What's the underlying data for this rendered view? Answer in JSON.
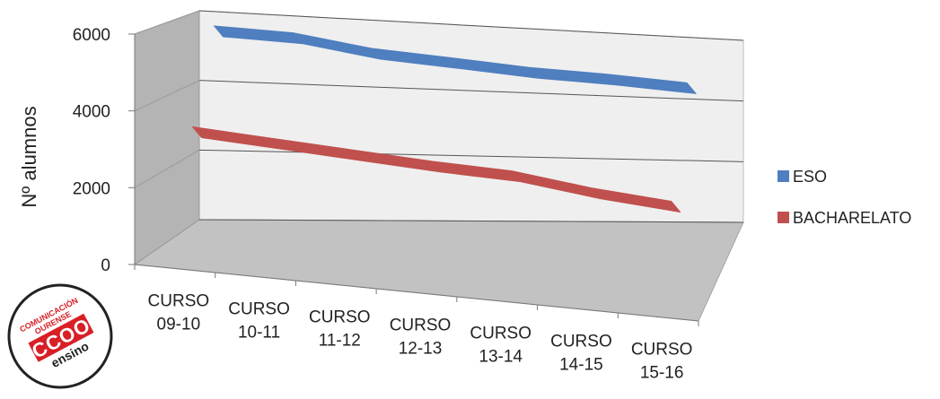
{
  "chart_data": {
    "type": "line",
    "title": "",
    "xlabel": "",
    "ylabel": "Nº alumnos",
    "ylim": [
      0,
      6000
    ],
    "yticks": [
      0,
      2000,
      4000,
      6000
    ],
    "grid": true,
    "legend_position": "right",
    "categories": [
      [
        "CURSO",
        "09-10"
      ],
      [
        "CURSO",
        "10-11"
      ],
      [
        "CURSO",
        "11-12"
      ],
      [
        "CURSO",
        "12-13"
      ],
      [
        "CURSO",
        "13-14"
      ],
      [
        "CURSO",
        "14-15"
      ],
      [
        "CURSO",
        "15-16"
      ]
    ],
    "series": [
      {
        "name": "ESO",
        "color": "#4f7fbf",
        "values": [
          5900,
          5800,
          5450,
          5280,
          5100,
          5000,
          4850
        ]
      },
      {
        "name": "BACHARELATO",
        "color": "#c0504d",
        "values": [
          3350,
          3200,
          3050,
          2900,
          2800,
          2500,
          2300
        ]
      }
    ]
  },
  "logo": {
    "line1": "COMUNICACIÓN",
    "line2": "OURENSE",
    "brand": "CCOO",
    "sub": "ensino"
  }
}
